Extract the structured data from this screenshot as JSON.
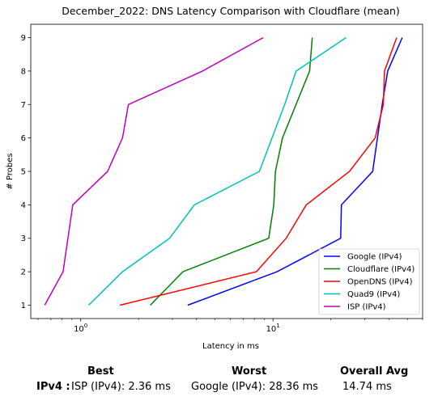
{
  "chart_data": {
    "type": "line",
    "title": "December_2022: DNS Latency Comparison with Cloudflare (mean)",
    "xlabel": "Latency in ms",
    "ylabel": "# Probes",
    "xscale": "log",
    "xlim": [
      0.55,
      60
    ],
    "ylim": [
      0.6,
      9.4
    ],
    "yticks": [
      "1",
      "2",
      "3",
      "4",
      "5",
      "6",
      "7",
      "8",
      "9"
    ],
    "xticks": [
      {
        "value": 1,
        "base": "10",
        "exp": "0"
      },
      {
        "value": 10,
        "base": "10",
        "exp": "1"
      }
    ],
    "legend_position": "lower-right",
    "grid": false,
    "series": [
      {
        "name": "Google (IPv4)",
        "color": "#0000ff",
        "x": [
          3.6,
          10.5,
          22.5,
          22.7,
          33.0,
          37.0,
          39.5,
          47.0
        ],
        "y": [
          1,
          2,
          3,
          4,
          5,
          7,
          8,
          9
        ]
      },
      {
        "name": "Cloudflare (IPv4)",
        "color": "#008000",
        "x": [
          2.3,
          3.4,
          9.5,
          10.1,
          10.3,
          11.2,
          15.5,
          16.0
        ],
        "y": [
          1,
          2,
          3,
          4,
          5,
          6,
          8,
          9
        ]
      },
      {
        "name": "OpenDNS (IPv4)",
        "color": "#ff0000",
        "x": [
          1.6,
          8.2,
          11.7,
          14.9,
          25.0,
          34.0,
          37.5,
          38.0,
          44.0
        ],
        "y": [
          1,
          2,
          3,
          4,
          5,
          6,
          7,
          8,
          9
        ]
      },
      {
        "name": "Quad9 (IPv4)",
        "color": "#00bfbf",
        "x": [
          1.1,
          1.65,
          2.9,
          3.9,
          8.5,
          11.5,
          13.2,
          24.0
        ],
        "y": [
          1,
          2,
          3,
          4,
          5,
          7,
          8,
          9
        ]
      },
      {
        "name": "ISP (IPv4)",
        "color": "#bf00bf",
        "x": [
          0.65,
          0.81,
          0.91,
          1.38,
          1.65,
          1.77,
          4.3,
          8.9
        ],
        "y": [
          1,
          2,
          4,
          5,
          6,
          7,
          8,
          9
        ]
      }
    ]
  },
  "summary": {
    "best_header": "Best",
    "worst_header": "Worst",
    "avg_header": "Overall Avg",
    "row_label": "IPv4 :",
    "best_value": "ISP (IPv4): 2.36 ms",
    "worst_value": "Google (IPv4): 28.36 ms",
    "avg_value": "14.74 ms"
  }
}
